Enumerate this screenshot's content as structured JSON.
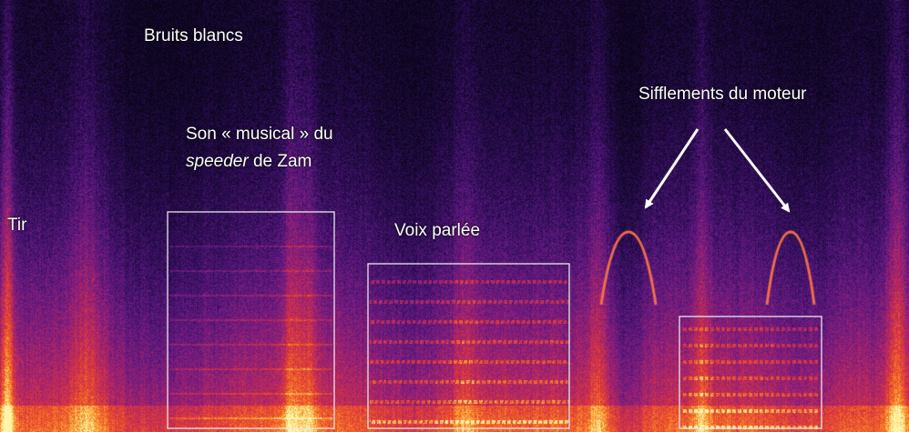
{
  "labels": {
    "white_noise": "Bruits blancs",
    "shot": "Tir",
    "musical_sound_line1": "Son « musical » du",
    "musical_sound_line2_italic": "speeder",
    "musical_sound_line2_rest": " de Zam",
    "spoken_voice": "Voix parlée",
    "engine_whistles": "Sifflements du moteur"
  },
  "colors": {
    "box_stroke": "#e8e8e8",
    "arrow": "#ffffff",
    "label_text": "#ffffff",
    "palette_low": "#120820",
    "palette_mid": "#8a1e7a",
    "palette_high": "#f0402a",
    "palette_peak": "#ffe27a"
  },
  "icons": {
    "arrow_left": "arrow-down-left-icon",
    "arrow_right": "arrow-down-right-icon"
  }
}
